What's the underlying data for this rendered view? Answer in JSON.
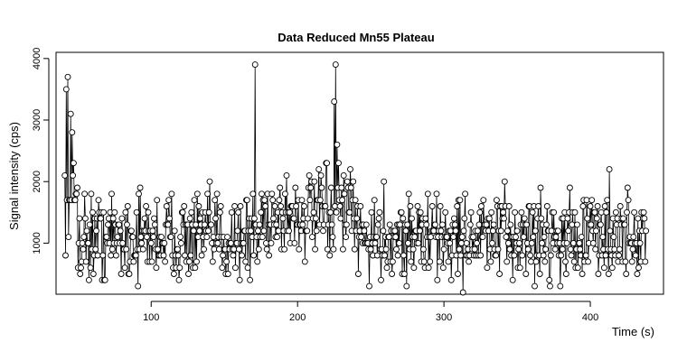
{
  "chart_data": {
    "type": "line",
    "title": "Data Reduced Mn55 Plateau",
    "xlabel": "Time (s)",
    "ylabel": "Signal intensity (cps)",
    "xlim": [
      35,
      450
    ],
    "ylim": [
      170,
      4100
    ],
    "x_ticks": [
      100,
      200,
      300,
      400
    ],
    "y_ticks": [
      1000,
      2000,
      3000,
      4000
    ],
    "marker": "open-circle",
    "line_color": "#000000",
    "grid": false,
    "legend": "none",
    "spikes": [
      {
        "x": 42,
        "y": 3500
      },
      {
        "x": 43,
        "y": 3700
      },
      {
        "x": 45,
        "y": 3100
      },
      {
        "x": 46,
        "y": 2800
      },
      {
        "x": 171,
        "y": 3900
      },
      {
        "x": 225,
        "y": 3300
      },
      {
        "x": 226,
        "y": 3900
      },
      {
        "x": 227,
        "y": 2600
      },
      {
        "x": 228,
        "y": 2300
      },
      {
        "x": 413,
        "y": 2200
      }
    ],
    "series": [
      {
        "x_start": 41,
        "x_step": 0.5,
        "y_unit": "cps",
        "values": []
      }
    ]
  }
}
